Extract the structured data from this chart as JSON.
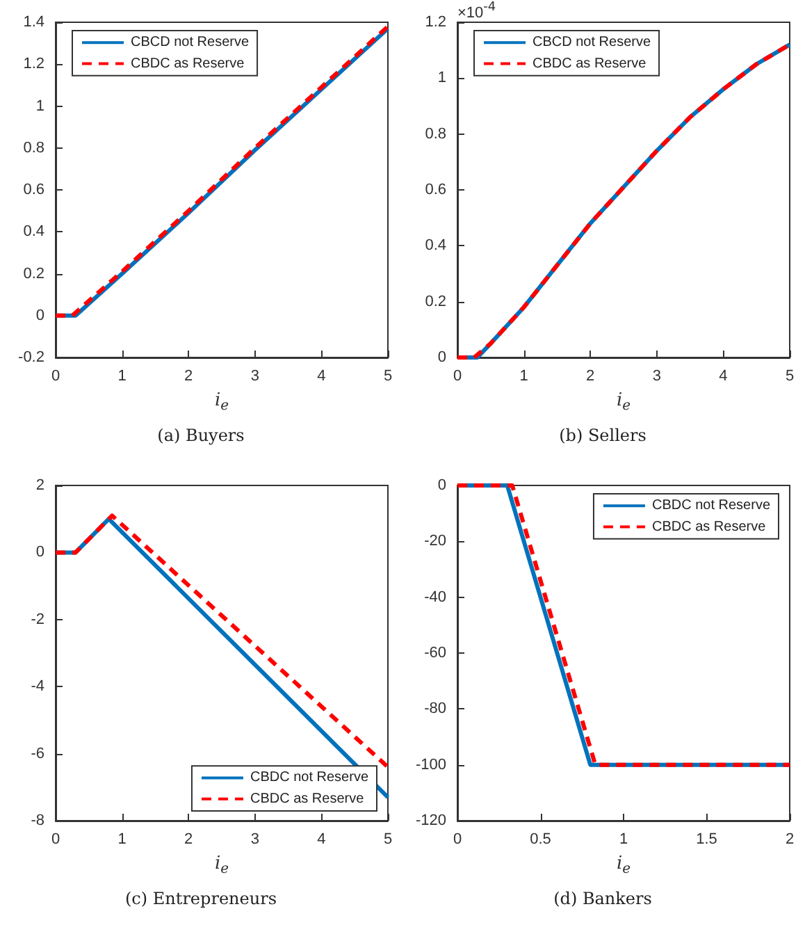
{
  "chart_data": [
    {
      "type": "line",
      "title": "(a) Buyers",
      "xlabel": "i$_{e}$",
      "xlim": [
        0,
        5
      ],
      "xticks": [
        0,
        1,
        2,
        3,
        4,
        5
      ],
      "ylim": [
        -0.2,
        1.4
      ],
      "yticks": [
        -0.2,
        0,
        0.2,
        0.4,
        0.6,
        0.8,
        1,
        1.2,
        1.4
      ],
      "legend": "top left",
      "grid": false,
      "series": [
        {
          "name": "CBCD not Reserve",
          "color": "#0072bd",
          "line_style": "solid",
          "x": [
            0,
            0.3,
            1,
            2,
            3,
            4,
            5
          ],
          "values": [
            0,
            0,
            0.2,
            0.49,
            0.79,
            1.08,
            1.37
          ]
        },
        {
          "name": "CBDC as Reserve",
          "color": "#ff0000",
          "line_style": "dashed",
          "x": [
            0,
            0.25,
            1,
            2,
            3,
            4,
            5
          ],
          "values": [
            0,
            0,
            0.21,
            0.5,
            0.8,
            1.09,
            1.38
          ]
        }
      ]
    },
    {
      "type": "line",
      "title": "(b) Sellers",
      "xlabel": "i$_{e}$",
      "annotations": [
        "×10$^{-4}$"
      ],
      "xlim": [
        0,
        5
      ],
      "xticks": [
        0,
        1,
        2,
        3,
        4,
        5
      ],
      "ylim": [
        0,
        1.2
      ],
      "yticks": [
        0,
        0.2,
        0.4,
        0.6,
        0.8,
        1,
        1.2
      ],
      "legend": "top left",
      "grid": false,
      "series": [
        {
          "name": "CBCD not Reserve",
          "color": "#0072bd",
          "line_style": "solid",
          "x": [
            0,
            0.3,
            0.5,
            1,
            1.5,
            2,
            2.5,
            3,
            3.5,
            4,
            4.5,
            5
          ],
          "values": [
            0,
            0,
            0.05,
            0.18,
            0.33,
            0.48,
            0.61,
            0.74,
            0.86,
            0.96,
            1.05,
            1.12
          ]
        },
        {
          "name": "CBDC as Reserve",
          "color": "#ff0000",
          "line_style": "dashed",
          "x": [
            0,
            0.25,
            0.5,
            1,
            1.5,
            2,
            2.5,
            3,
            3.5,
            4,
            4.5,
            5
          ],
          "values": [
            0,
            0,
            0.05,
            0.18,
            0.33,
            0.48,
            0.61,
            0.74,
            0.86,
            0.96,
            1.05,
            1.12
          ]
        }
      ]
    },
    {
      "type": "line",
      "title": "(c) Entrepreneurs",
      "xlabel": "i$_{e}$",
      "xlim": [
        0,
        5
      ],
      "xticks": [
        0,
        1,
        2,
        3,
        4,
        5
      ],
      "ylim": [
        -8,
        2
      ],
      "yticks": [
        -8,
        -6,
        -4,
        -2,
        0,
        2
      ],
      "legend": "bottom right",
      "grid": false,
      "series": [
        {
          "name": "CBDC not Reserve",
          "color": "#0072bd",
          "line_style": "solid",
          "x": [
            0,
            0.3,
            0.8,
            5
          ],
          "values": [
            0,
            0,
            1,
            -7.3
          ]
        },
        {
          "name": "CBDC as Reserve",
          "color": "#ff0000",
          "line_style": "dashed",
          "x": [
            0,
            0.3,
            0.85,
            5
          ],
          "values": [
            0,
            0,
            1.1,
            -6.4
          ]
        }
      ]
    },
    {
      "type": "line",
      "title": "(d) Bankers",
      "xlabel": "i$_{e}$",
      "xlim": [
        0,
        2
      ],
      "xticks": [
        0,
        0.5,
        1,
        1.5,
        2
      ],
      "ylim": [
        -120,
        0
      ],
      "yticks": [
        -120,
        -100,
        -80,
        -60,
        -40,
        -20,
        0
      ],
      "legend": "top right",
      "grid": false,
      "series": [
        {
          "name": "CBDC not Reserve",
          "color": "#0072bd",
          "line_style": "solid",
          "x": [
            0,
            0.3,
            0.8,
            2
          ],
          "values": [
            0,
            0,
            -100,
            -100
          ]
        },
        {
          "name": "CBDC as Reserve",
          "color": "#ff0000",
          "line_style": "dashed",
          "x": [
            0,
            0.33,
            0.83,
            2
          ],
          "values": [
            0,
            0,
            -100,
            -100
          ]
        }
      ]
    }
  ]
}
